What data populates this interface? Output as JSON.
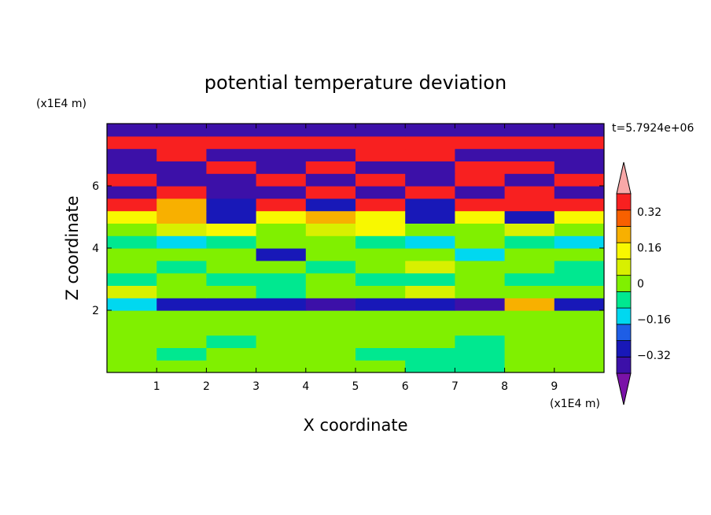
{
  "chart_data": {
    "type": "heatmap",
    "title": "potential temperature deviation",
    "xlabel": "X coordinate",
    "ylabel": "Z coordinate",
    "x_unit": "(x1E4 m)",
    "y_unit": "(x1E4 m)",
    "time_label": "t=5.7924e+06",
    "xlim": [
      0,
      10
    ],
    "ylim": [
      0,
      8
    ],
    "x_ticks": [
      "1",
      "2",
      "3",
      "4",
      "5",
      "6",
      "7",
      "8",
      "9"
    ],
    "y_ticks": [
      "2",
      "4",
      "6"
    ],
    "colorbar": {
      "tick_labels": [
        "0.32",
        "0.16",
        "0",
        "-0.16",
        "-0.32"
      ],
      "tick_values": [
        0.32,
        0.16,
        0,
        -0.16,
        -0.32
      ],
      "levels": [
        -0.48,
        -0.4,
        -0.32,
        -0.24,
        -0.16,
        -0.08,
        0,
        0.08,
        0.16,
        0.24,
        0.32,
        0.4,
        0.48
      ],
      "colors": [
        "#7a12a8",
        "#3c10a8",
        "#1818b8",
        "#1e5ee6",
        "#00d8f0",
        "#00e890",
        "#80f000",
        "#d8f000",
        "#f8f800",
        "#f8b000",
        "#f86000",
        "#f82020",
        "#f8a8a8"
      ],
      "extend": "both"
    },
    "rows": [
      {
        "z": 0.2,
        "values": [
          0.04,
          0.04,
          0.04,
          0.04,
          0.04,
          0.02,
          -0.02,
          -0.02,
          0.02,
          0.04
        ]
      },
      {
        "z": 0.6,
        "values": [
          0.04,
          -0.02,
          0.04,
          0.04,
          0.02,
          -0.02,
          -0.02,
          -0.02,
          0.02,
          0.04
        ]
      },
      {
        "z": 1.0,
        "values": [
          0.04,
          0.04,
          -0.02,
          0.04,
          0.04,
          0.02,
          0.04,
          -0.02,
          0.04,
          0.04
        ]
      },
      {
        "z": 1.4,
        "values": [
          0.04,
          0.04,
          0.04,
          0.04,
          0.04,
          0.04,
          0.04,
          0.04,
          0.04,
          0.04
        ]
      },
      {
        "z": 1.8,
        "values": [
          0.04,
          0.04,
          0.04,
          0.04,
          0.04,
          0.04,
          0.04,
          0.04,
          0.04,
          0.04
        ]
      },
      {
        "z": 2.2,
        "values": [
          -0.1,
          -0.3,
          -0.3,
          -0.3,
          -0.36,
          -0.3,
          -0.3,
          -0.36,
          0.3,
          -0.3
        ]
      },
      {
        "z": 2.6,
        "values": [
          0.1,
          0.04,
          0.04,
          -0.02,
          0.04,
          0.04,
          0.12,
          0.04,
          0.04,
          0.04
        ]
      },
      {
        "z": 3.0,
        "values": [
          -0.02,
          0.04,
          -0.02,
          -0.02,
          0.04,
          -0.02,
          -0.02,
          0.04,
          -0.02,
          -0.02
        ]
      },
      {
        "z": 3.4,
        "values": [
          0.04,
          -0.02,
          0.04,
          0.04,
          -0.02,
          0.04,
          0.12,
          0.04,
          0.04,
          -0.02
        ]
      },
      {
        "z": 3.8,
        "values": [
          0.04,
          0.04,
          0.04,
          -0.3,
          0.04,
          0.04,
          0.04,
          -0.1,
          0.04,
          0.04
        ]
      },
      {
        "z": 4.2,
        "values": [
          -0.02,
          -0.1,
          -0.02,
          0.04,
          0.04,
          -0.02,
          -0.1,
          0.04,
          -0.02,
          -0.1
        ]
      },
      {
        "z": 4.6,
        "values": [
          0.04,
          0.12,
          0.2,
          0.04,
          0.12,
          0.2,
          0.04,
          0.04,
          0.12,
          0.04
        ]
      },
      {
        "z": 5.0,
        "values": [
          0.2,
          0.3,
          -0.3,
          0.2,
          0.3,
          0.2,
          -0.3,
          0.2,
          -0.3,
          0.2
        ]
      },
      {
        "z": 5.4,
        "values": [
          0.4,
          0.3,
          -0.3,
          0.4,
          -0.3,
          0.4,
          -0.3,
          0.4,
          0.4,
          0.4
        ]
      },
      {
        "z": 5.8,
        "values": [
          -0.4,
          0.4,
          -0.4,
          -0.4,
          0.4,
          -0.4,
          0.4,
          -0.4,
          0.4,
          -0.4
        ]
      },
      {
        "z": 6.2,
        "values": [
          0.4,
          -0.4,
          -0.4,
          0.4,
          -0.4,
          0.4,
          -0.4,
          0.4,
          -0.4,
          0.4
        ]
      },
      {
        "z": 6.6,
        "values": [
          -0.4,
          -0.4,
          0.4,
          -0.4,
          0.4,
          -0.4,
          -0.4,
          0.4,
          0.4,
          -0.4
        ]
      },
      {
        "z": 7.0,
        "values": [
          -0.4,
          0.4,
          -0.4,
          -0.4,
          -0.4,
          0.4,
          0.4,
          -0.4,
          -0.4,
          -0.4
        ]
      },
      {
        "z": 7.4,
        "values": [
          0.4,
          0.4,
          0.4,
          0.4,
          0.4,
          0.4,
          0.4,
          0.4,
          0.4,
          0.4
        ]
      },
      {
        "z": 7.8,
        "values": [
          -0.4,
          -0.4,
          -0.4,
          -0.4,
          -0.4,
          -0.4,
          -0.4,
          -0.4,
          -0.4,
          -0.4
        ]
      }
    ]
  }
}
